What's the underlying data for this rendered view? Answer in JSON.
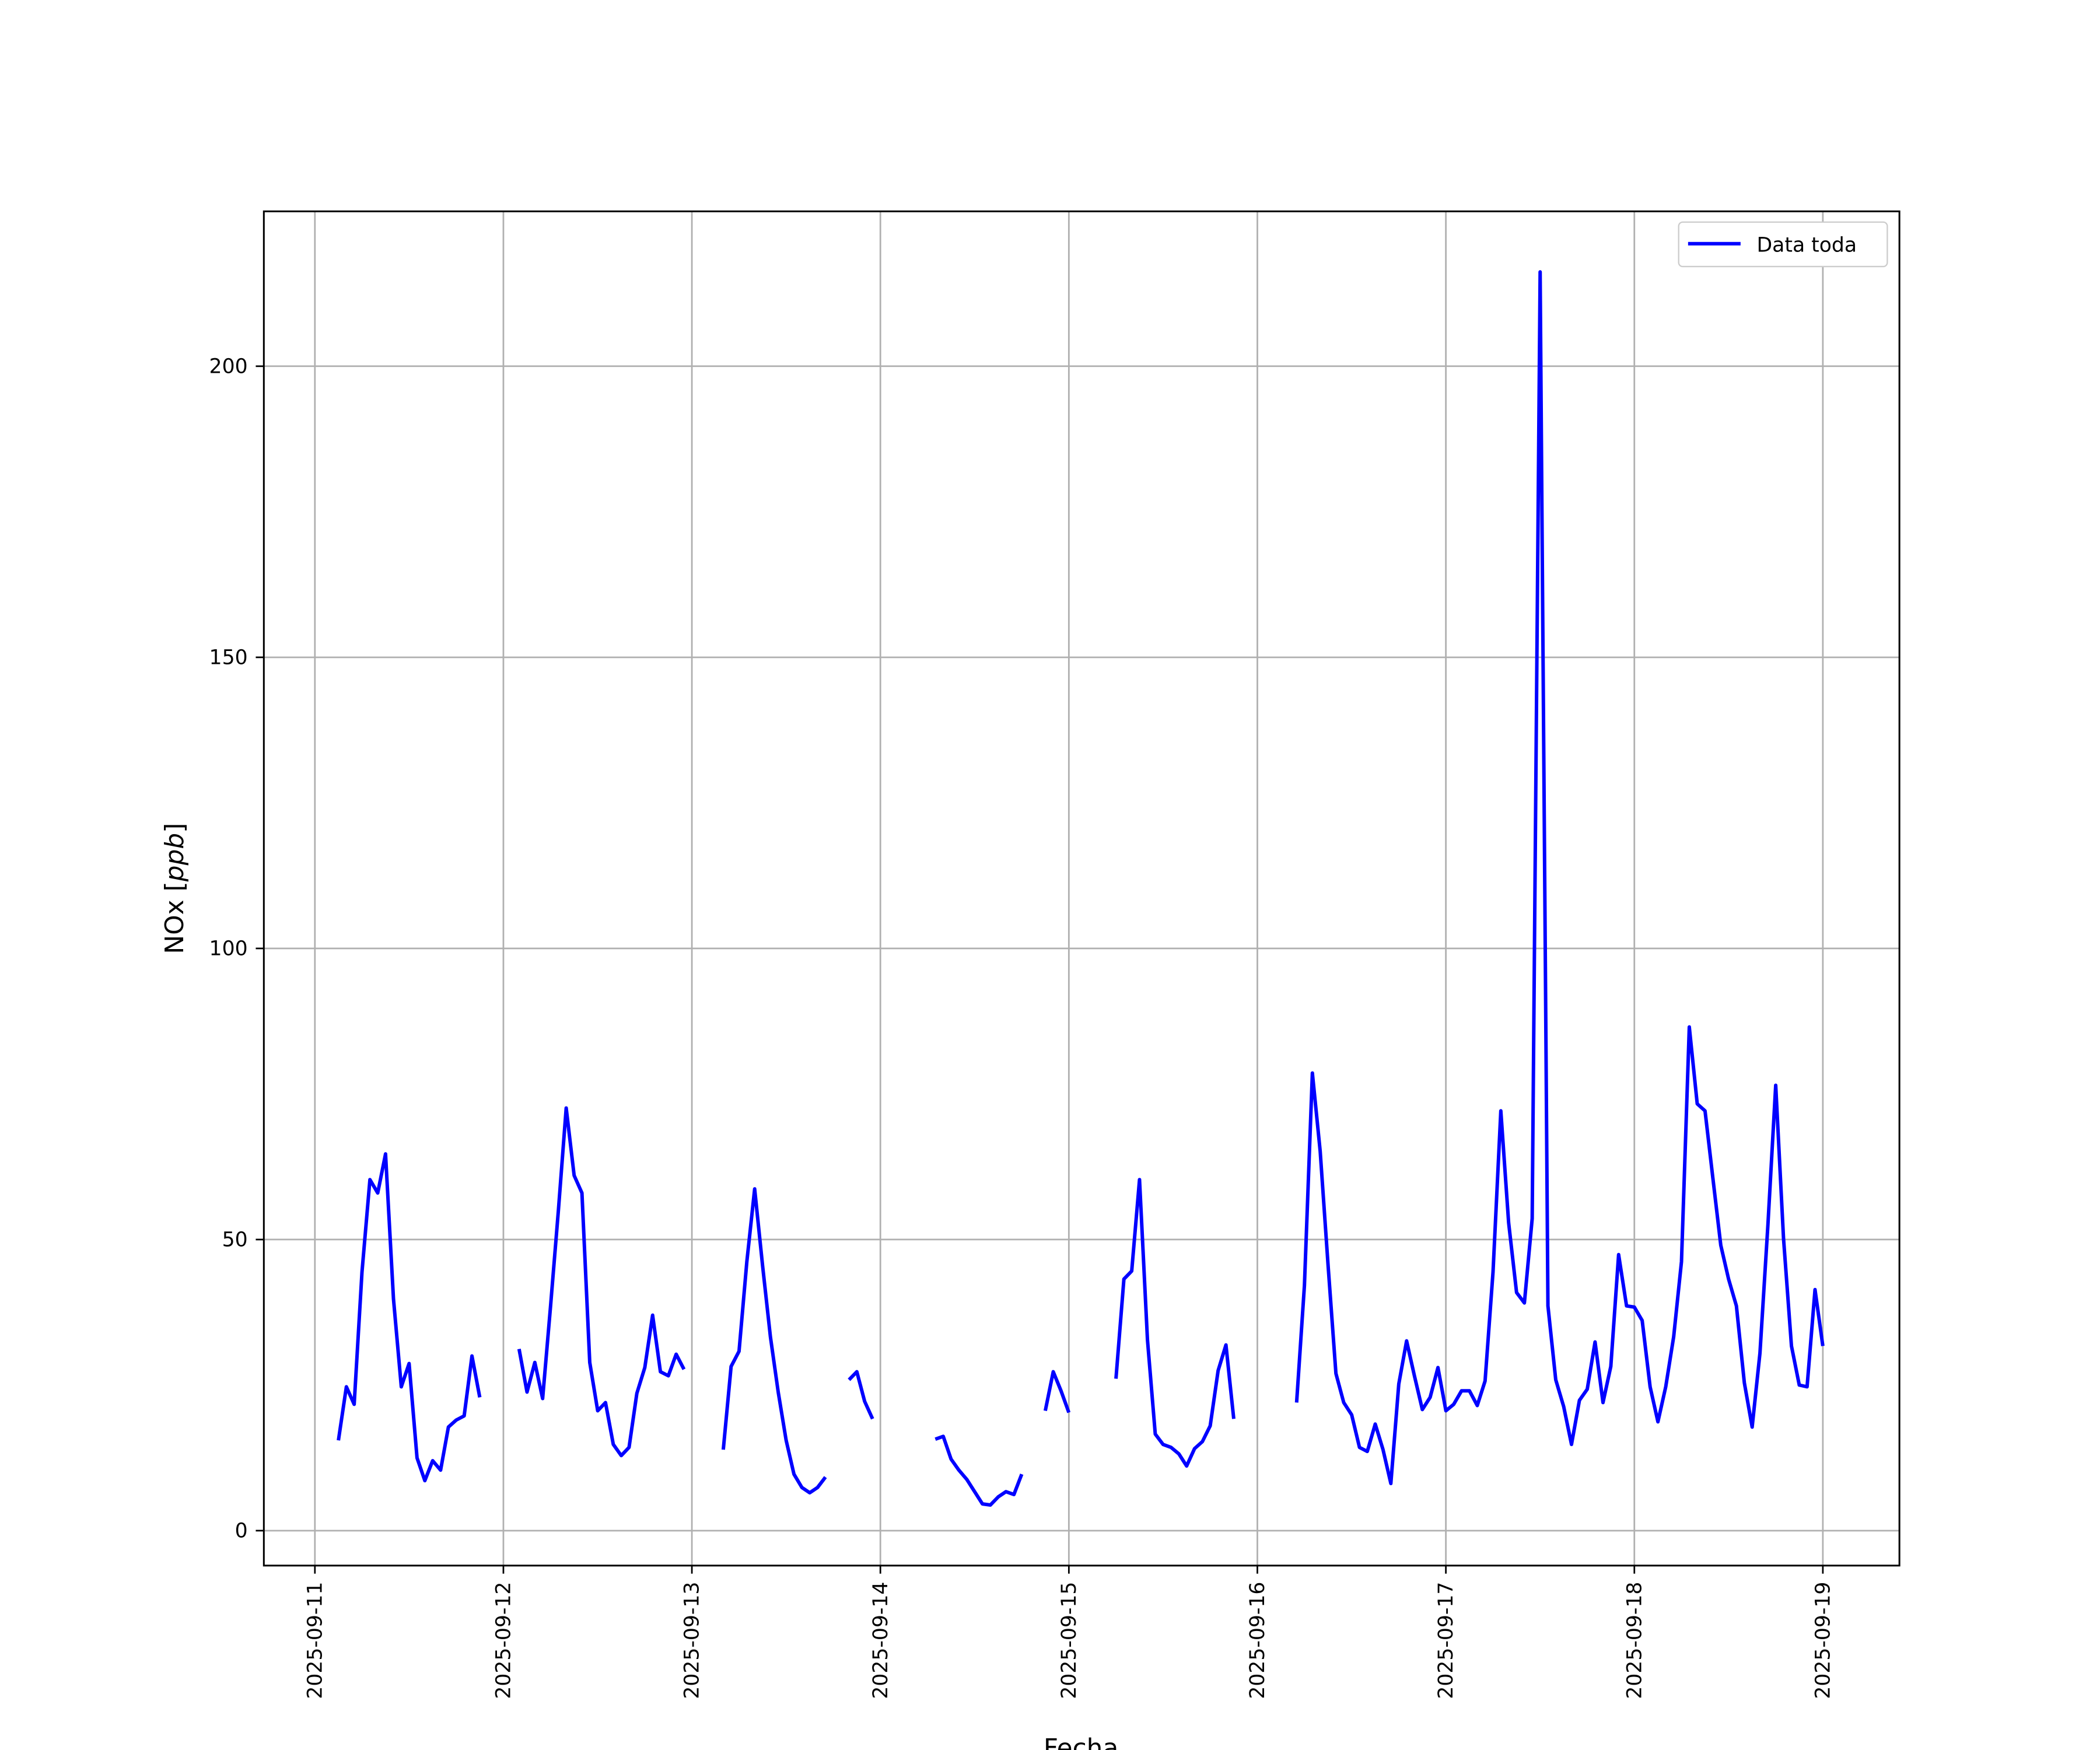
{
  "chart_data": {
    "type": "line",
    "title": "",
    "xlabel": "Fecha",
    "ylabel": "NOx [",
    "ylabel_unit": "ppb",
    "ylabel_end": "]",
    "xlim": [
      "2025-09-10 17:30",
      "2025-09-19 09:45"
    ],
    "ylim": [
      -6,
      226.6
    ],
    "x_ticks": [
      "2025-09-11",
      "2025-09-12",
      "2025-09-13",
      "2025-09-14",
      "2025-09-15",
      "2025-09-16",
      "2025-09-17",
      "2025-09-18",
      "2025-09-19"
    ],
    "y_ticks": [
      0,
      50,
      100,
      150,
      200
    ],
    "grid": true,
    "legend_position": "top-right",
    "colors": {
      "line": "#0000ff",
      "grid": "#b0b0b0"
    },
    "series": [
      {
        "name": "Data toda",
        "points": [
          [
            "2025-09-11 03:00",
            15.5
          ],
          [
            "2025-09-11 04:00",
            24.7
          ],
          [
            "2025-09-11 05:00",
            21.7
          ],
          [
            "2025-09-11 06:00",
            44.4
          ],
          [
            "2025-09-11 07:00",
            60.3
          ],
          [
            "2025-09-11 08:00",
            58
          ],
          [
            "2025-09-11 09:00",
            64.7
          ],
          [
            "2025-09-11 10:00",
            39.8
          ],
          [
            "2025-09-11 11:00",
            24.7
          ],
          [
            "2025-09-11 12:00",
            28.7
          ],
          [
            "2025-09-11 13:00",
            12.5
          ],
          [
            "2025-09-11 14:00",
            8.6
          ],
          [
            "2025-09-11 15:00",
            12
          ],
          [
            "2025-09-11 16:00",
            10.4
          ],
          [
            "2025-09-11 17:00",
            17.8
          ],
          [
            "2025-09-11 18:00",
            19
          ],
          [
            "2025-09-11 19:00",
            19.7
          ],
          [
            "2025-09-11 20:00",
            30
          ],
          [
            "2025-09-11 21:00",
            22.9
          ],
          [
            "2025-09-12 02:00",
            31.2
          ],
          [
            "2025-09-12 03:00",
            23.8
          ],
          [
            "2025-09-12 04:00",
            28.9
          ],
          [
            "2025-09-12 05:00",
            22.7
          ],
          [
            "2025-09-12 06:00",
            38.6
          ],
          [
            "2025-09-12 07:00",
            55
          ],
          [
            "2025-09-12 08:00",
            72.6
          ],
          [
            "2025-09-12 09:00",
            61
          ],
          [
            "2025-09-12 10:00",
            58
          ],
          [
            "2025-09-12 11:00",
            28.9
          ],
          [
            "2025-09-12 12:00",
            20.6
          ],
          [
            "2025-09-12 13:00",
            22
          ],
          [
            "2025-09-12 14:00",
            14.8
          ],
          [
            "2025-09-12 15:00",
            12.9
          ],
          [
            "2025-09-12 16:00",
            14.3
          ],
          [
            "2025-09-12 17:00",
            23.6
          ],
          [
            "2025-09-12 18:00",
            28
          ],
          [
            "2025-09-12 19:00",
            37
          ],
          [
            "2025-09-12 20:00",
            27.3
          ],
          [
            "2025-09-12 21:00",
            26.6
          ],
          [
            "2025-09-12 22:00",
            30.3
          ],
          [
            "2025-09-12 23:00",
            27.7
          ],
          [
            "2025-09-13 04:00",
            13.9
          ],
          [
            "2025-09-13 05:00",
            28.2
          ],
          [
            "2025-09-13 06:00",
            30.8
          ],
          [
            "2025-09-13 07:00",
            46.2
          ],
          [
            "2025-09-13 08:00",
            58.7
          ],
          [
            "2025-09-13 09:00",
            45.5
          ],
          [
            "2025-09-13 10:00",
            33.3
          ],
          [
            "2025-09-13 11:00",
            23.8
          ],
          [
            "2025-09-13 12:00",
            15.5
          ],
          [
            "2025-09-13 13:00",
            9.7
          ],
          [
            "2025-09-13 14:00",
            7.4
          ],
          [
            "2025-09-13 15:00",
            6.5
          ],
          [
            "2025-09-13 16:00",
            7.4
          ],
          [
            "2025-09-13 17:00",
            9.2
          ],
          [
            "2025-09-13 20:00",
            25.9
          ],
          [
            "2025-09-13 21:00",
            27.3
          ],
          [
            "2025-09-13 22:00",
            22.2
          ],
          [
            "2025-09-13 23:00",
            19.2
          ],
          [
            "2025-09-14 07:00",
            15.7
          ],
          [
            "2025-09-14 08:00",
            16.2
          ],
          [
            "2025-09-14 09:00",
            12.3
          ],
          [
            "2025-09-14 10:00",
            10.4
          ],
          [
            "2025-09-14 11:00",
            8.8
          ],
          [
            "2025-09-14 12:00",
            6.7
          ],
          [
            "2025-09-14 13:00",
            4.6
          ],
          [
            "2025-09-14 14:00",
            4.4
          ],
          [
            "2025-09-14 15:00",
            5.8
          ],
          [
            "2025-09-14 16:00",
            6.7
          ],
          [
            "2025-09-14 17:00",
            6.2
          ],
          [
            "2025-09-14 18:00",
            9.7
          ],
          [
            "2025-09-14 21:00",
            20.6
          ],
          [
            "2025-09-14 22:00",
            27.3
          ],
          [
            "2025-09-14 23:00",
            24
          ],
          [
            "2025-09-15 00:00",
            20.3
          ],
          [
            "2025-09-15 06:00",
            26.1
          ],
          [
            "2025-09-15 07:00",
            43.2
          ],
          [
            "2025-09-15 08:00",
            44.6
          ],
          [
            "2025-09-15 09:00",
            60.3
          ],
          [
            "2025-09-15 10:00",
            32.8
          ],
          [
            "2025-09-15 11:00",
            16.6
          ],
          [
            "2025-09-15 12:00",
            14.8
          ],
          [
            "2025-09-15 13:00",
            14.3
          ],
          [
            "2025-09-15 14:00",
            13.2
          ],
          [
            "2025-09-15 15:00",
            11.1
          ],
          [
            "2025-09-15 16:00",
            14.1
          ],
          [
            "2025-09-15 17:00",
            15.3
          ],
          [
            "2025-09-15 18:00",
            18
          ],
          [
            "2025-09-15 19:00",
            27.5
          ],
          [
            "2025-09-15 20:00",
            31.9
          ],
          [
            "2025-09-15 21:00",
            19.2
          ],
          [
            "2025-09-16 05:00",
            22
          ],
          [
            "2025-09-16 06:00",
            42.1
          ],
          [
            "2025-09-16 07:00",
            78.6
          ],
          [
            "2025-09-16 08:00",
            65.2
          ],
          [
            "2025-09-16 09:00",
            45.5
          ],
          [
            "2025-09-16 10:00",
            27
          ],
          [
            "2025-09-16 11:00",
            22
          ],
          [
            "2025-09-16 12:00",
            19.9
          ],
          [
            "2025-09-16 13:00",
            14.3
          ],
          [
            "2025-09-16 14:00",
            13.6
          ],
          [
            "2025-09-16 15:00",
            18.3
          ],
          [
            "2025-09-16 16:00",
            13.9
          ],
          [
            "2025-09-16 17:00",
            8.1
          ],
          [
            "2025-09-16 18:00",
            25.2
          ],
          [
            "2025-09-16 19:00",
            32.6
          ],
          [
            "2025-09-16 20:00",
            26.6
          ],
          [
            "2025-09-16 21:00",
            20.8
          ],
          [
            "2025-09-16 22:00",
            22.9
          ],
          [
            "2025-09-16 23:00",
            28
          ],
          [
            "2025-09-17 00:00",
            20.6
          ],
          [
            "2025-09-17 01:00",
            21.7
          ],
          [
            "2025-09-17 02:00",
            24
          ],
          [
            "2025-09-17 03:00",
            24
          ],
          [
            "2025-09-17 04:00",
            21.5
          ],
          [
            "2025-09-17 05:00",
            25.7
          ],
          [
            "2025-09-17 06:00",
            44.4
          ],
          [
            "2025-09-17 07:00",
            72.1
          ],
          [
            "2025-09-17 08:00",
            52.9
          ],
          [
            "2025-09-17 09:00",
            40.9
          ],
          [
            "2025-09-17 10:00",
            39.1
          ],
          [
            "2025-09-17 11:00",
            53.6
          ],
          [
            "2025-09-17 12:00",
            216.2
          ],
          [
            "2025-09-17 13:00",
            38.6
          ],
          [
            "2025-09-17 14:00",
            25.9
          ],
          [
            "2025-09-17 15:00",
            21.3
          ],
          [
            "2025-09-17 16:00",
            14.8
          ],
          [
            "2025-09-17 17:00",
            22.4
          ],
          [
            "2025-09-17 18:00",
            24.3
          ],
          [
            "2025-09-17 19:00",
            32.4
          ],
          [
            "2025-09-17 20:00",
            22
          ],
          [
            "2025-09-17 21:00",
            28.2
          ],
          [
            "2025-09-17 22:00",
            47.4
          ],
          [
            "2025-09-17 23:00",
            38.6
          ],
          [
            "2025-09-18 00:00",
            38.4
          ],
          [
            "2025-09-18 01:00",
            36.1
          ],
          [
            "2025-09-18 02:00",
            24.7
          ],
          [
            "2025-09-18 03:00",
            18.7
          ],
          [
            "2025-09-18 04:00",
            24.7
          ],
          [
            "2025-09-18 05:00",
            33.3
          ],
          [
            "2025-09-18 06:00",
            46.2
          ],
          [
            "2025-09-18 07:00",
            86.5
          ],
          [
            "2025-09-18 08:00",
            73.3
          ],
          [
            "2025-09-18 09:00",
            72.1
          ],
          [
            "2025-09-18 10:00",
            60.6
          ],
          [
            "2025-09-18 11:00",
            49
          ],
          [
            "2025-09-18 12:00",
            43.2
          ],
          [
            "2025-09-18 13:00",
            38.6
          ],
          [
            "2025-09-18 14:00",
            25.4
          ],
          [
            "2025-09-18 15:00",
            17.8
          ],
          [
            "2025-09-18 16:00",
            30.5
          ],
          [
            "2025-09-18 17:00",
            52.5
          ],
          [
            "2025-09-18 18:00",
            76.5
          ],
          [
            "2025-09-18 19:00",
            50.2
          ],
          [
            "2025-09-18 20:00",
            31.7
          ],
          [
            "2025-09-18 21:00",
            25
          ],
          [
            "2025-09-18 22:00",
            24.7
          ],
          [
            "2025-09-18 23:00",
            41.4
          ],
          [
            "2025-09-19 00:00",
            31.7
          ]
        ]
      }
    ]
  }
}
